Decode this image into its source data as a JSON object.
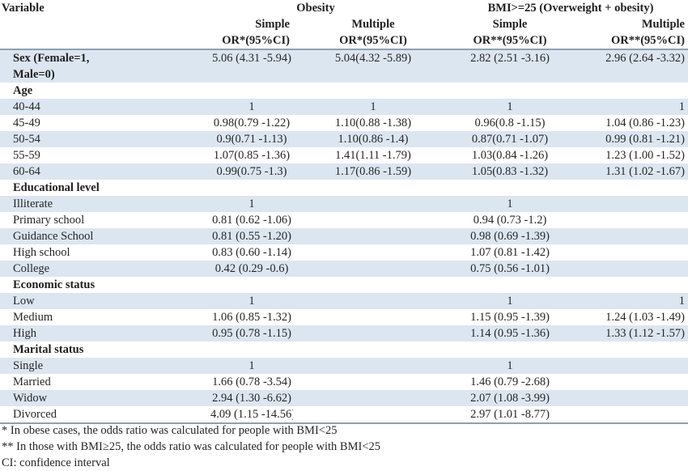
{
  "header": {
    "variable": "Variable",
    "group1": "Obesity",
    "group2": "BMI>=25 (Overweight + obesity)",
    "simple": "Simple",
    "multiple": "Multiple",
    "or1": "OR*(95%CI)",
    "or2": "OR**(95%CI)"
  },
  "rows": [
    {
      "label": "Sex (Female=1, Male=0)",
      "c1": "5.06 (4.31 -5.94)",
      "c2": "5.04(4.32 -5.89)",
      "c3": "2.82 (2.51 -3.16)",
      "c4": "2.96 (2.64 -3.32)"
    },
    {
      "label": "Age",
      "c1": "",
      "c2": "",
      "c3": "",
      "c4": ""
    },
    {
      "label": "40-44",
      "c1": "1",
      "c2": "1",
      "c3": "1",
      "c4": "1"
    },
    {
      "label": "45-49",
      "c1": "0.98(0.79 -1.22)",
      "c2": "1.10(0.88 -1.38)",
      "c3": "0.96(0.8 -1.15)",
      "c4": "1.04 (0.86 -1.23)"
    },
    {
      "label": "50-54",
      "c1": "0.9(0.71 -1.13)",
      "c2": "1.10(0.86 -1.4)",
      "c3": "0.87(0.71 -1.07)",
      "c4": "0.99 (0.81 -1.21)"
    },
    {
      "label": "55-59",
      "c1": "1.07(0.85 -1.36)",
      "c2": "1.41(1.11 -1.79)",
      "c3": "1.03(0.84 -1.26)",
      "c4": "1.23 (1.00 -1.52)"
    },
    {
      "label": "60-64",
      "c1": "0.99(0.75 -1.3)",
      "c2": "1.17(0.86 -1.59)",
      "c3": "1.05(0.83 -1.32)",
      "c4": "1.31 (1.02 -1.67)"
    },
    {
      "label": "Educational level",
      "c1": "",
      "c2": "",
      "c3": "",
      "c4": ""
    },
    {
      "label": "Illiterate",
      "c1": "1",
      "c2": "",
      "c3": "1",
      "c4": ""
    },
    {
      "label": "Primary school",
      "c1": "0.81 (0.62 -1.06)",
      "c2": "",
      "c3": "0.94 (0.73 -1.2)",
      "c4": ""
    },
    {
      "label": "Guidance School",
      "c1": "0.81 (0.55 -1.20)",
      "c2": "",
      "c3": "0.98 (0.69 -1.39)",
      "c4": ""
    },
    {
      "label": "High school",
      "c1": "0.83 (0.60 -1.14)",
      "c2": "",
      "c3": "1.07 (0.81 -1.42)",
      "c4": ""
    },
    {
      "label": "College",
      "c1": "0.42 (0.29 -0.6)",
      "c2": "",
      "c3": "0.75 (0.56 -1.01)",
      "c4": ""
    },
    {
      "label": "Economic status",
      "c1": "",
      "c2": "",
      "c3": "",
      "c4": ""
    },
    {
      "label": "Low",
      "c1": "1",
      "c2": "",
      "c3": "1",
      "c4": "1"
    },
    {
      "label": "Medium",
      "c1": "1.06 (0.85 -1.32)",
      "c2": "",
      "c3": "1.15 (0.95 -1.39)",
      "c4": "1.24 (1.03 -1.49)"
    },
    {
      "label": "High",
      "c1": "0.95 (0.78 -1.15)",
      "c2": "",
      "c3": "1.14 (0.95 -1.36)",
      "c4": "1.33 (1.12 -1.57)"
    },
    {
      "label": "Marital status",
      "c1": "",
      "c2": "",
      "c3": "",
      "c4": ""
    },
    {
      "label": "Single",
      "c1": "1",
      "c2": "",
      "c3": "1",
      "c4": ""
    },
    {
      "label": "Married",
      "c1": "1.66 (0.78 -3.54)",
      "c2": "",
      "c3": "1.46 (0.79 -2.68)",
      "c4": ""
    },
    {
      "label": "Widow",
      "c1": "2.94 (1.30 -6.62)",
      "c2": "",
      "c3": "2.07 (1.08 -3.99)",
      "c4": ""
    },
    {
      "label": "Divorced",
      "c1": "4.09 (1.15 -14.56)",
      "c2": "",
      "c3": "2.97 (1.01 -8.77)",
      "c4": ""
    }
  ],
  "footnotes": [
    "* In obese cases, the odds ratio was calculated for people with BMI<25",
    "** In those with BMI≥25, the odds ratio was calculated for people with BMI<25",
    "CI: confidence interval"
  ]
}
